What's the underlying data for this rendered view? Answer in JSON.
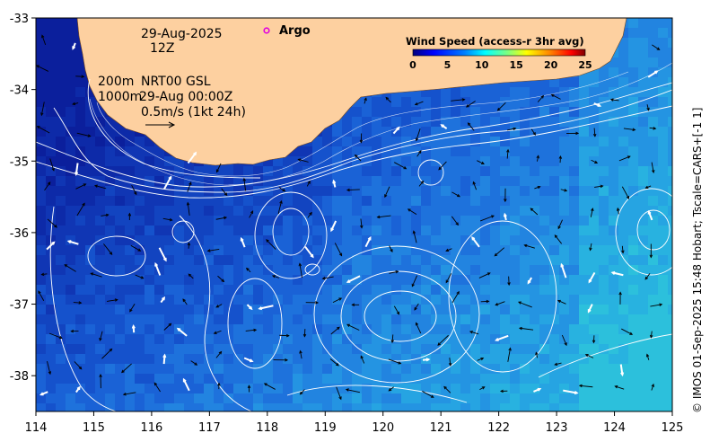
{
  "map": {
    "date": "29-Aug-2025",
    "hour": "12Z",
    "depth_line_1": "200m",
    "depth_line_2": "1000m",
    "product": "NRT00 GSL",
    "timestamp": "29-Aug 00:00Z",
    "scale_label": "0.5m/s (1kt 24h)",
    "argo_label": "Argo",
    "credit": "© IMOS 01-Sep-2025 15:48 Hobart; Tscale=CARS+[-1 1]",
    "colors": {
      "land": "#fdd0a0",
      "ocean_deep": "#1030b0",
      "ocean_mid": "#1a6ee0",
      "ocean_light": "#22b4e0",
      "argo_marker": "#e000e0"
    }
  },
  "legend": {
    "title": "Wind Speed (access-r 3hr avg)",
    "ticks": [
      "0",
      "5",
      "10",
      "15",
      "20",
      "25"
    ],
    "colormap": [
      "#00007f",
      "#0000ff",
      "#007fff",
      "#00ffff",
      "#7fff7f",
      "#ffff00",
      "#ff7f00",
      "#ff0000",
      "#7f0000"
    ]
  },
  "chart_data": {
    "type": "heatmap",
    "x_axis": {
      "label": "",
      "lim": [
        114,
        125
      ],
      "ticks": [
        "114",
        "115",
        "116",
        "117",
        "118",
        "119",
        "120",
        "121",
        "122",
        "123",
        "124",
        "125"
      ]
    },
    "y_axis": {
      "label": "",
      "lim": [
        -38.5,
        -33
      ],
      "ticks": [
        "-33",
        "-34",
        "-35",
        "-36",
        "-37",
        "-38"
      ]
    },
    "argo_float": {
      "lon": 118.0,
      "lat": -33.17
    },
    "grid": false
  }
}
